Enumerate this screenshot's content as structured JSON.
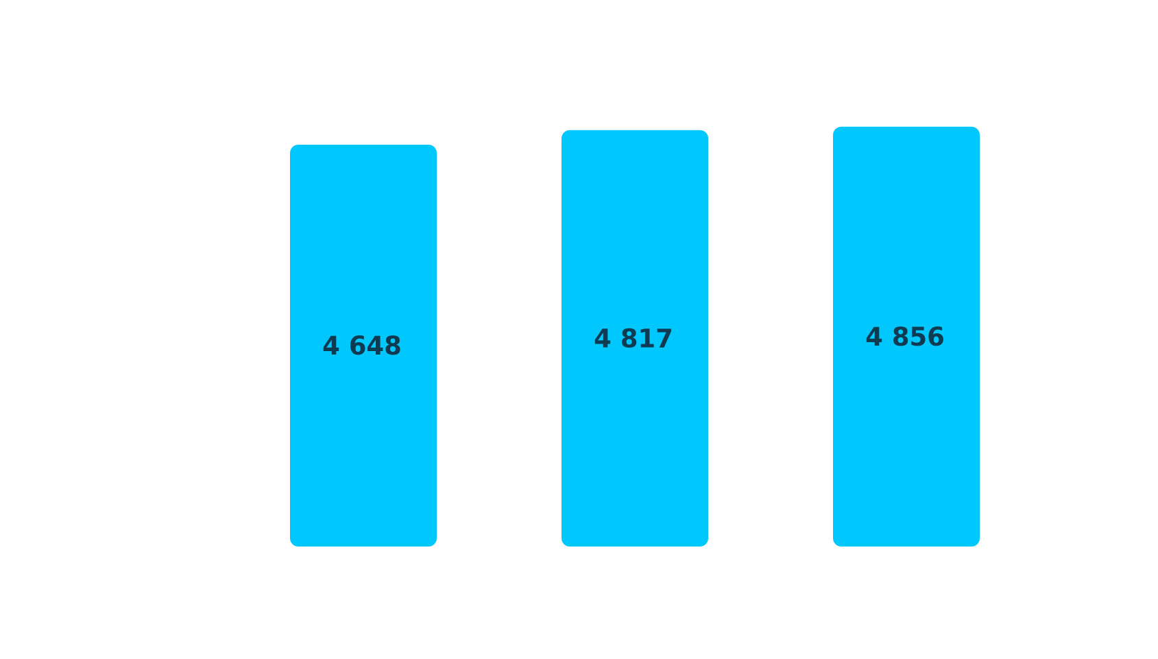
{
  "chart_data": {
    "type": "bar",
    "categories": [
      "",
      "",
      ""
    ],
    "values": [
      4648,
      4817,
      4856
    ],
    "value_labels": [
      "4 648",
      "4 817",
      "4 856"
    ],
    "title": "",
    "xlabel": "",
    "ylabel": "",
    "ylim": [
      0,
      5000
    ],
    "grid": false,
    "legend": "none",
    "bar_color": "#00c8ff",
    "label_color": "#0e3a52"
  }
}
